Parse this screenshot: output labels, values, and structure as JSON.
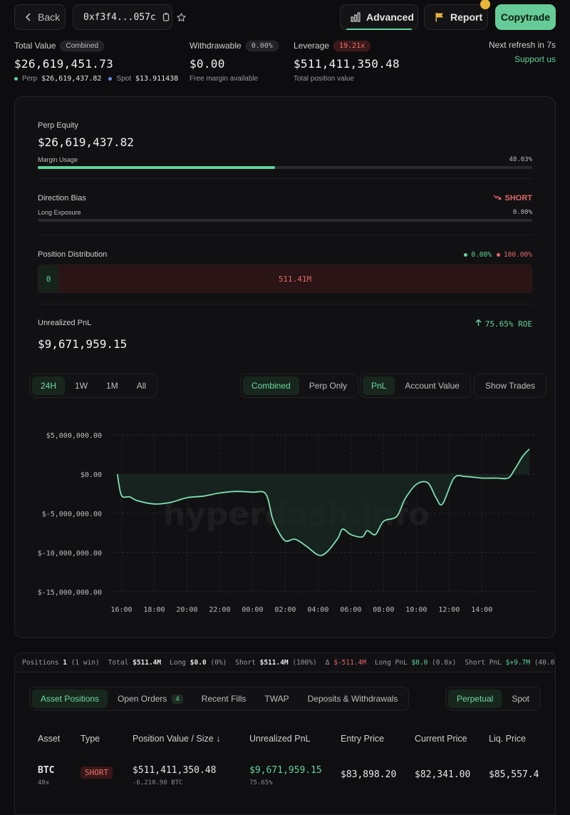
{
  "topbar": {
    "back_label": "Back",
    "address": "0xf3f4...057c",
    "advanced_label": "Advanced",
    "report_label": "Report",
    "copytrade_label": "Copytrade"
  },
  "summary": {
    "total_value": {
      "label": "Total Value",
      "pill": "Combined",
      "value": "$26,619,451.73",
      "perp_label": "Perp",
      "perp_value": "$26,619,437.82",
      "spot_label": "Spot",
      "spot_value": "$13.911438"
    },
    "withdrawable": {
      "label": "Withdrawable",
      "pill": "0.00%",
      "value": "$0.00",
      "sub": "Free margin available"
    },
    "leverage": {
      "label": "Leverage",
      "pill": "19.21x",
      "value": "$511,411,350.48",
      "sub": "Total position value"
    },
    "refresh": "Next refresh in 7s",
    "support": "Support us"
  },
  "perp": {
    "equity_label": "Perp Equity",
    "equity_value": "$26,619,437.82",
    "margin_label": "Margin Usage",
    "margin_pct": "48.03%",
    "margin_fill": 48.03
  },
  "bias": {
    "label": "Direction Bias",
    "direction": "SHORT",
    "long_label": "Long Exposure",
    "long_pct": "0.00%"
  },
  "distribution": {
    "label": "Position Distribution",
    "long_pct": "0.00%",
    "short_pct": "100.00%",
    "long_value": "0",
    "short_value": "511.41M"
  },
  "pnl": {
    "label": "Unrealized PnL",
    "value": "$9,671,959.15",
    "roe": "75.65% ROE"
  },
  "controls": {
    "ranges": [
      "24H",
      "1W",
      "1M",
      "All"
    ],
    "active_range": "24H",
    "scope": [
      "Combined",
      "Perp Only"
    ],
    "metric": [
      "PnL",
      "Account Value"
    ],
    "show_trades": "Show Trades"
  },
  "chart_data": {
    "type": "area",
    "watermark": "hyperdash.info",
    "yticks": [
      "$5,000,000.00",
      "$0.00",
      "$-5,000,000.00",
      "$-10,000,000.00",
      "$-15,000,000.00"
    ],
    "ylim": [
      -15000000,
      5000000
    ],
    "xticks": [
      "16:00",
      "18:00",
      "20:00",
      "22:00",
      "00:00",
      "02:00",
      "04:00",
      "06:00",
      "08:00",
      "10:00",
      "12:00",
      "14:00"
    ],
    "x": [
      15.75,
      16.0,
      16.5,
      17.0,
      18.0,
      19.0,
      20.0,
      21.0,
      22.0,
      23.0,
      24.0,
      24.8,
      25.2,
      25.5,
      26.0,
      26.6,
      27.3,
      28.0,
      28.5,
      29.2,
      29.5,
      30.0,
      30.7,
      31.0,
      31.5,
      32.0,
      32.8,
      33.3,
      34.0,
      34.7,
      35.2,
      35.6,
      36.3,
      37.0,
      38.0,
      38.9,
      39.6,
      40.0,
      40.5,
      40.9
    ],
    "values": [
      0,
      -2700000,
      -2900000,
      -3400000,
      -3800000,
      -3600000,
      -3000000,
      -2800000,
      -2400000,
      -2200000,
      -2300000,
      -2500000,
      -5500000,
      -7000000,
      -8500000,
      -8300000,
      -9200000,
      -10300000,
      -10000000,
      -8200000,
      -7000000,
      -7700000,
      -8000000,
      -7200000,
      -7700000,
      -6000000,
      -5400000,
      -3200000,
      -1300000,
      -1100000,
      -3000000,
      -3800000,
      -500000,
      -300000,
      -500000,
      -500000,
      -500000,
      600000,
      2300000,
      3200000
    ]
  },
  "strip": {
    "positions_label": "Positions",
    "positions_value": "1",
    "positions_sub": "(1 win)",
    "total_label": "Total",
    "total_value": "$511.4M",
    "long_label": "Long",
    "long_value": "$0.0",
    "long_sub": "(0%)",
    "short_label": "Short",
    "short_value": "$511.4M",
    "short_sub": "(100%)",
    "delta_label": "Δ",
    "delta_value": "$-511.4M",
    "longpnl_label": "Long PnL",
    "longpnl_value": "$0.0",
    "longpnl_sub": "(0.0x)",
    "shortpnl_label": "Short PnL",
    "shortpnl_value": "$+9.7M",
    "shortpnl_sub": "(40.0"
  },
  "tabs": {
    "asset_positions": "Asset Positions",
    "open_orders": "Open Orders",
    "open_orders_count": "4",
    "recent_fills": "Recent Fills",
    "twap": "TWAP",
    "deposits": "Deposits & Withdrawals",
    "perpetual": "Perpetual",
    "spot": "Spot"
  },
  "table": {
    "headers": [
      "Asset",
      "Type",
      "Position Value / Size ↓",
      "Unrealized PnL",
      "Entry Price",
      "Current Price",
      "Liq. Price"
    ],
    "row": {
      "asset": "BTC",
      "leverage": "40x",
      "type": "SHORT",
      "position_value": "$511,411,350.48",
      "size": "-6,210.90 BTC",
      "pnl": "$9,671,959.15",
      "pnl_pct": "75.65%",
      "entry": "$83,898.20",
      "current": "$82,341.00",
      "liq": "$85,557.4"
    }
  }
}
